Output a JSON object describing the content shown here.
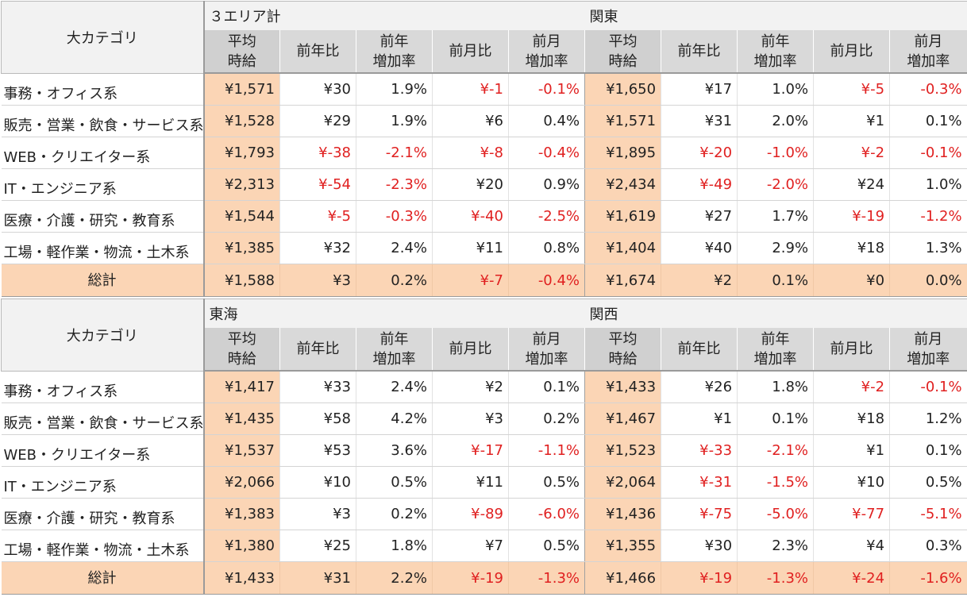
{
  "tables": [
    {
      "category_header": "大カテゴリ",
      "regions": [
        "３エリア計",
        "関東"
      ],
      "sub_headers": [
        "平均\n時給",
        "前年比",
        "前年\n増加率",
        "前月比",
        "前月\n増加率",
        "平均\n時給",
        "前年比",
        "前年\n増加率",
        "前月比",
        "前月\n増加率"
      ],
      "rows": [
        {
          "category": "事務・オフィス系",
          "values": [
            "¥1,571",
            "¥30",
            "1.9%",
            "¥-1",
            "-0.1%",
            "¥1,650",
            "¥17",
            "1.0%",
            "¥-5",
            "-0.3%"
          ]
        },
        {
          "category": "販売・営業・飲食・サービス系",
          "values": [
            "¥1,528",
            "¥29",
            "1.9%",
            "¥6",
            "0.4%",
            "¥1,571",
            "¥31",
            "2.0%",
            "¥1",
            "0.1%"
          ]
        },
        {
          "category": "WEB・クリエイター系",
          "values": [
            "¥1,793",
            "¥-38",
            "-2.1%",
            "¥-8",
            "-0.4%",
            "¥1,895",
            "¥-20",
            "-1.0%",
            "¥-2",
            "-0.1%"
          ]
        },
        {
          "category": "IT・エンジニア系",
          "values": [
            "¥2,313",
            "¥-54",
            "-2.3%",
            "¥20",
            "0.9%",
            "¥2,434",
            "¥-49",
            "-2.0%",
            "¥24",
            "1.0%"
          ]
        },
        {
          "category": "医療・介護・研究・教育系",
          "values": [
            "¥1,544",
            "¥-5",
            "-0.3%",
            "¥-40",
            "-2.5%",
            "¥1,619",
            "¥27",
            "1.7%",
            "¥-19",
            "-1.2%"
          ]
        },
        {
          "category": "工場・軽作業・物流・土木系",
          "values": [
            "¥1,385",
            "¥32",
            "2.4%",
            "¥11",
            "0.8%",
            "¥1,404",
            "¥40",
            "2.9%",
            "¥18",
            "1.3%"
          ]
        }
      ],
      "total": {
        "category": "総計",
        "values": [
          "¥1,588",
          "¥3",
          "0.2%",
          "¥-7",
          "-0.4%",
          "¥1,674",
          "¥2",
          "0.1%",
          "¥0",
          "0.0%"
        ]
      }
    },
    {
      "category_header": "大カテゴリ",
      "regions": [
        "東海",
        "関西"
      ],
      "sub_headers": [
        "平均\n時給",
        "前年比",
        "前年\n増加率",
        "前月比",
        "前月\n増加率",
        "平均\n時給",
        "前年比",
        "前年\n増加率",
        "前月比",
        "前月\n増加率"
      ],
      "rows": [
        {
          "category": "事務・オフィス系",
          "values": [
            "¥1,417",
            "¥33",
            "2.4%",
            "¥2",
            "0.1%",
            "¥1,433",
            "¥26",
            "1.8%",
            "¥-2",
            "-0.1%"
          ]
        },
        {
          "category": "販売・営業・飲食・サービス系",
          "values": [
            "¥1,435",
            "¥58",
            "4.2%",
            "¥3",
            "0.2%",
            "¥1,467",
            "¥1",
            "0.1%",
            "¥18",
            "1.2%"
          ]
        },
        {
          "category": "WEB・クリエイター系",
          "values": [
            "¥1,537",
            "¥53",
            "3.6%",
            "¥-17",
            "-1.1%",
            "¥1,523",
            "¥-33",
            "-2.1%",
            "¥1",
            "0.1%"
          ]
        },
        {
          "category": "IT・エンジニア系",
          "values": [
            "¥2,066",
            "¥10",
            "0.5%",
            "¥11",
            "0.5%",
            "¥2,064",
            "¥-31",
            "-1.5%",
            "¥10",
            "0.5%"
          ]
        },
        {
          "category": "医療・介護・研究・教育系",
          "values": [
            "¥1,383",
            "¥3",
            "0.2%",
            "¥-89",
            "-6.0%",
            "¥1,436",
            "¥-75",
            "-5.0%",
            "¥-77",
            "-5.1%"
          ]
        },
        {
          "category": "工場・軽作業・物流・土木系",
          "values": [
            "¥1,380",
            "¥25",
            "1.8%",
            "¥7",
            "0.5%",
            "¥1,355",
            "¥30",
            "2.3%",
            "¥4",
            "0.3%"
          ]
        }
      ],
      "total": {
        "category": "総計",
        "values": [
          "¥1,433",
          "¥31",
          "2.2%",
          "¥-19",
          "-1.3%",
          "¥1,466",
          "¥-19",
          "-1.3%",
          "¥-24",
          "-1.6%"
        ]
      }
    }
  ],
  "colors": {
    "highlight": "#fbd5b5",
    "negative": "#e02020",
    "header": "#d9d9d9"
  }
}
